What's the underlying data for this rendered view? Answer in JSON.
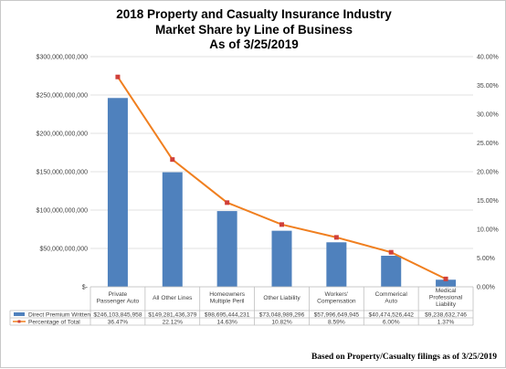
{
  "chart_data": {
    "type": "bar",
    "title_lines": [
      "2018 Property and Casualty Insurance Industry",
      "Market Share by Line of Business",
      "As of 3/25/2019"
    ],
    "categories": [
      [
        "Private",
        "Passenger Auto"
      ],
      [
        "All Other Lines"
      ],
      [
        "Homeowners",
        "Multiple Peril"
      ],
      [
        "Other Liability"
      ],
      [
        "Workers'",
        "Compensation"
      ],
      [
        "Commerical",
        "Auto"
      ],
      [
        "Medical",
        "Professional",
        "Liability"
      ]
    ],
    "series": [
      {
        "name": "Direct Premium Written",
        "kind": "bar",
        "axis": "left",
        "color": "#4f81bd",
        "values": [
          246103845958,
          149281436379,
          98695444231,
          73048989296,
          57996649945,
          40474526442,
          9238632746
        ],
        "value_labels": [
          "$246,103,845,958",
          "$149,281,436,379",
          "$98,695,444,231",
          "$73,048,989,296",
          "$57,996,649,945",
          "$40,474,526,442",
          "$9,238,632,746"
        ]
      },
      {
        "name": "Percentage of Total",
        "kind": "line",
        "axis": "right",
        "color": "#f07f1f",
        "marker_color": "#d0403a",
        "values": [
          36.47,
          22.12,
          14.63,
          10.82,
          8.59,
          6.0,
          1.37
        ],
        "value_labels": [
          "36.47%",
          "22.12%",
          "14.63%",
          "10.82%",
          "8.59%",
          "6.00%",
          "1.37%"
        ]
      }
    ],
    "ylim_left": [
      0,
      300000000000
    ],
    "ylim_right": [
      0,
      40
    ],
    "left_ticks": [
      0,
      50000000000,
      100000000000,
      150000000000,
      200000000000,
      250000000000,
      300000000000
    ],
    "left_tick_labels": [
      "$-",
      "$50,000,000,000",
      "$100,000,000,000",
      "$150,000,000,000",
      "$200,000,000,000",
      "$250,000,000,000",
      "$300,000,000,000"
    ],
    "right_ticks": [
      0,
      5,
      10,
      15,
      20,
      25,
      30,
      35,
      40
    ],
    "right_tick_labels": [
      "0.00%",
      "5.00%",
      "10.00%",
      "15.00%",
      "20.00%",
      "25.00%",
      "30.00%",
      "35.00%",
      "40.00%"
    ],
    "grid": true,
    "legend_placement": "data-table-bottom"
  },
  "footer_note": "Based on Property/Casualty filings as of 3/25/2019"
}
